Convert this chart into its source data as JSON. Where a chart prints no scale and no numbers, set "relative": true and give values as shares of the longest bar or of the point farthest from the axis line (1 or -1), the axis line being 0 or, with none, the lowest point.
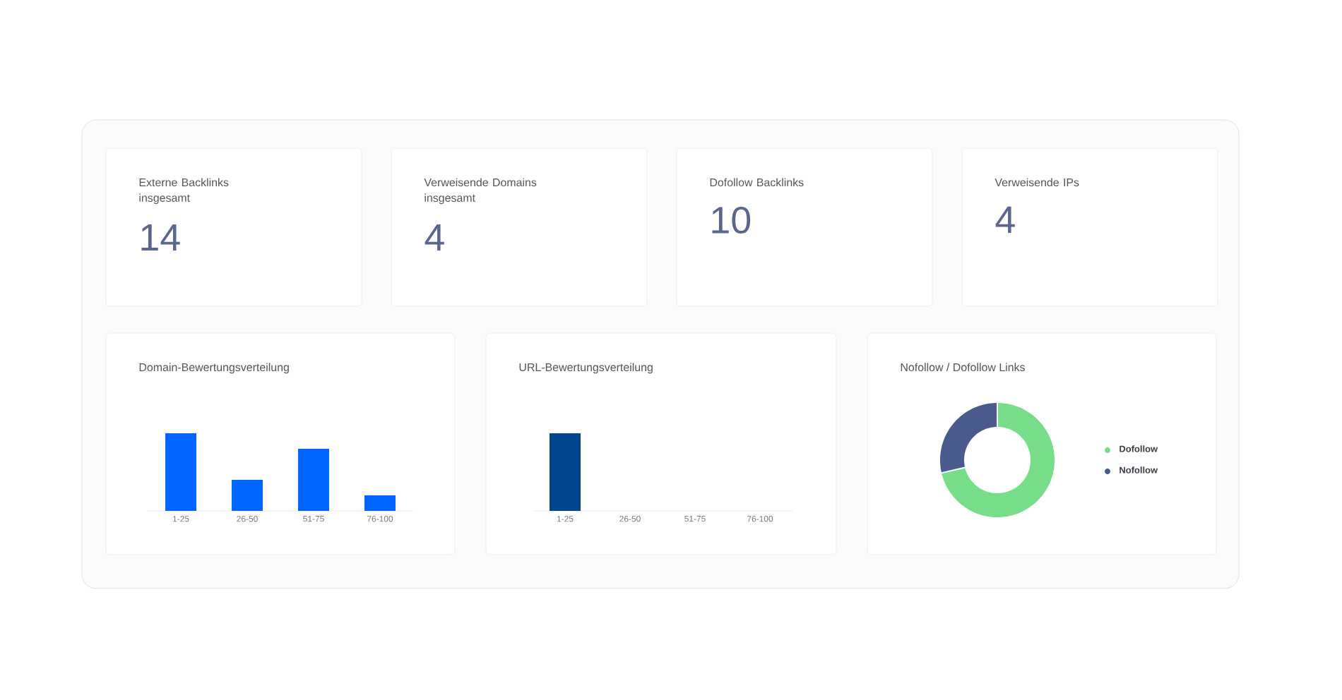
{
  "chart_data": [
    {
      "type": "other",
      "title": "Externe Backlinks insgesamt",
      "annotations": [
        "14"
      ]
    },
    {
      "type": "other",
      "title": "Verweisende Domains insgesamt",
      "annotations": [
        "4"
      ]
    },
    {
      "type": "other",
      "title": "Dofollow Backlinks",
      "annotations": [
        "10"
      ]
    },
    {
      "type": "other",
      "title": "Verweisende IPs",
      "annotations": [
        "4"
      ]
    },
    {
      "type": "bar",
      "title": "Domain-Bewertungsverteilung",
      "categories": [
        "1-25",
        "26-50",
        "51-75",
        "76-100"
      ],
      "values": [
        1,
        0.4,
        0.8,
        0.2
      ],
      "color": "#0066ff",
      "relative": true
    },
    {
      "type": "bar",
      "title": "URL-Bewertungsverteilung",
      "categories": [
        "1-25",
        "26-50",
        "51-75",
        "76-100"
      ],
      "values": [
        1,
        0,
        0,
        0
      ],
      "color": "#00448c",
      "relative": true
    },
    {
      "type": "donut",
      "title": "Nofollow / Dofollow Links",
      "categories": [
        "Dofollow",
        "Nofollow"
      ],
      "values": [
        71.4,
        28.6
      ],
      "colors": [
        "#77dd88",
        "#4a5a8c"
      ],
      "legend": "right"
    }
  ]
}
